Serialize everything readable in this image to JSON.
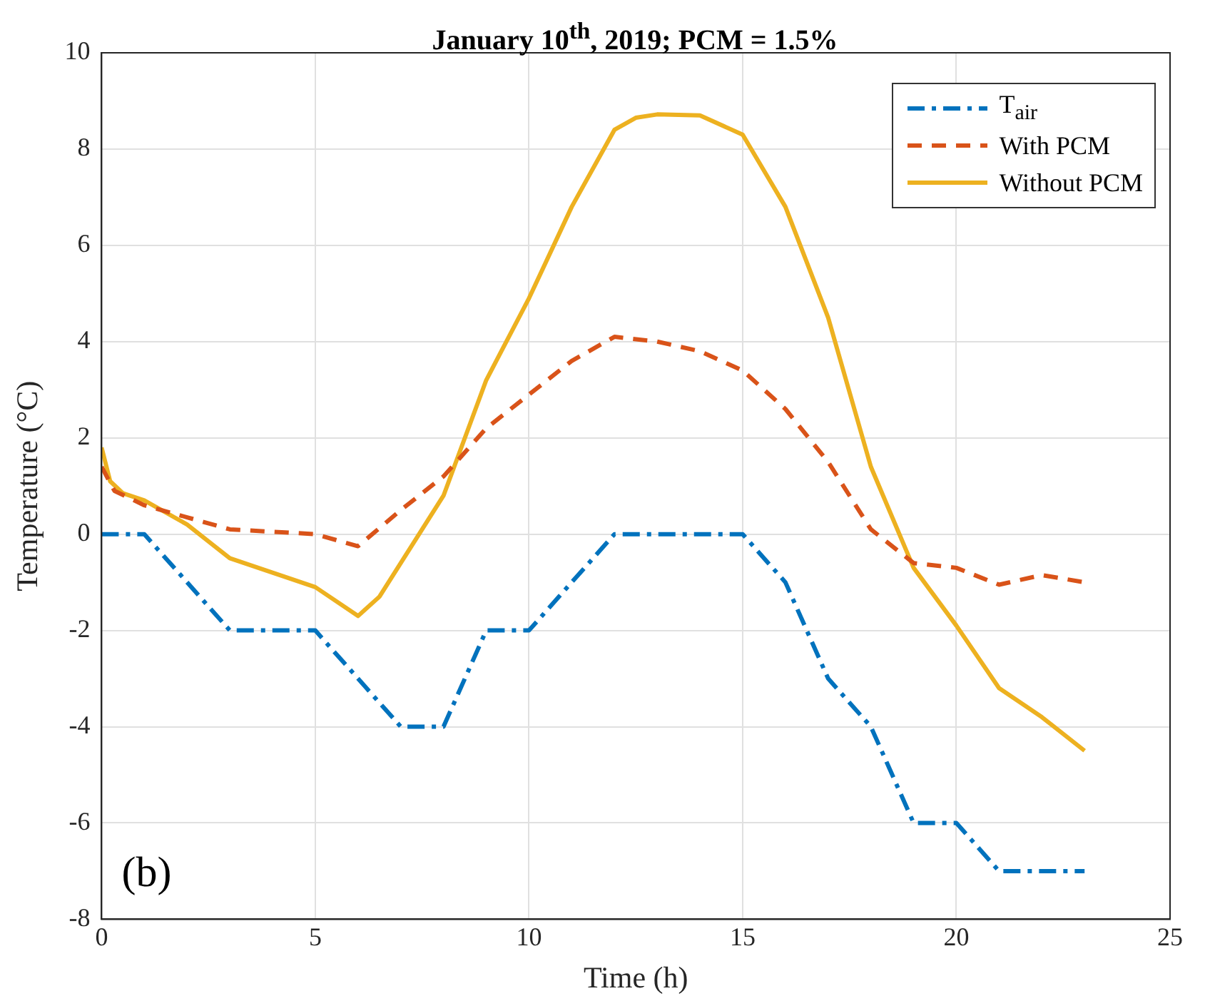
{
  "chart_data": {
    "type": "line",
    "title": "January 10$^{th}$, 2019; PCM = 1.5%",
    "xlabel": "Time (h)",
    "ylabel": "Temperature (°C)",
    "xlim": [
      0,
      25
    ],
    "xticks": [
      0,
      5,
      10,
      15,
      20,
      25
    ],
    "ylim": [
      -8,
      10
    ],
    "yticks": [
      -8,
      -6,
      -4,
      -2,
      0,
      2,
      4,
      6,
      8,
      10
    ],
    "grid": true,
    "legend": "top right",
    "marker": "none",
    "annotations": [
      "(b)"
    ],
    "series": [
      {
        "name": "T$_{air}$",
        "color": "#0072bd",
        "line_style": "dashdot",
        "x": [
          0,
          1,
          3,
          5,
          7,
          8,
          9,
          10,
          12,
          15,
          16,
          17,
          18,
          19,
          20,
          21,
          23
        ],
        "values": [
          0,
          0,
          -2,
          -2,
          -4,
          -4,
          -2,
          -2,
          0,
          0,
          -1,
          -3,
          -4,
          -6,
          -6,
          -7,
          -7
        ]
      },
      {
        "name": "With PCM",
        "color": "#d95319",
        "line_style": "dashed",
        "x": [
          0,
          0.3,
          1,
          2,
          3,
          4,
          5,
          6,
          7,
          8,
          9,
          10,
          11,
          12,
          13,
          14,
          15,
          16,
          17,
          18,
          19,
          20,
          21,
          22,
          23
        ],
        "values": [
          1.4,
          0.9,
          0.6,
          0.35,
          0.1,
          0.05,
          0,
          -0.25,
          0.5,
          1.2,
          2.2,
          2.9,
          3.6,
          4.1,
          4.0,
          3.8,
          3.4,
          2.6,
          1.5,
          0.1,
          -0.6,
          -0.7,
          -1.05,
          -0.85,
          -1.0
        ]
      },
      {
        "name": "Without PCM",
        "color": "#edb120",
        "line_style": "solid",
        "x": [
          0,
          0.2,
          0.5,
          1,
          2,
          3,
          4,
          5,
          6,
          6.5,
          7,
          8,
          9,
          10,
          11,
          12,
          12.5,
          13,
          14,
          15,
          16,
          17,
          18,
          19,
          20,
          21,
          22,
          23
        ],
        "values": [
          1.8,
          1.1,
          0.85,
          0.7,
          0.2,
          -0.5,
          -0.8,
          -1.1,
          -1.7,
          -1.3,
          -0.6,
          0.8,
          3.2,
          4.9,
          6.8,
          8.4,
          8.65,
          8.72,
          8.7,
          8.3,
          6.8,
          4.5,
          1.4,
          -0.7,
          -1.9,
          -3.2,
          -3.8,
          -4.5
        ]
      }
    ]
  }
}
